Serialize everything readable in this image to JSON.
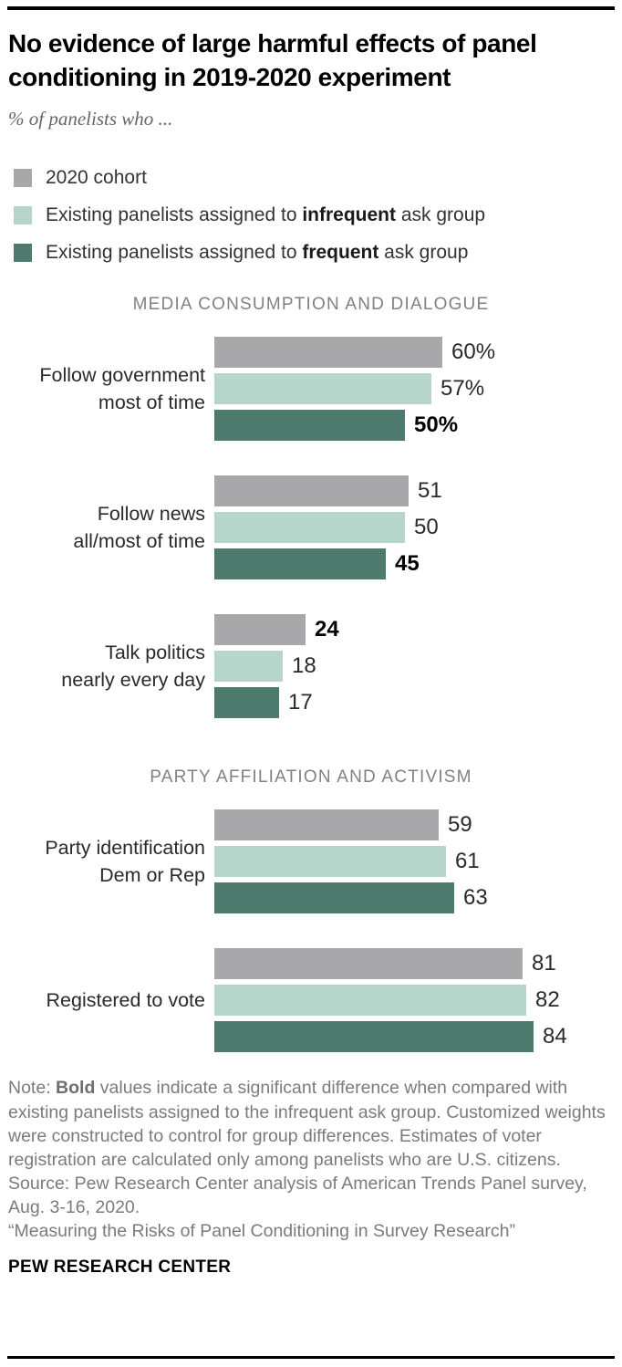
{
  "header": {
    "title": "No evidence of large harmful effects of panel conditioning in 2019-2020 experiment",
    "subtitle": "% of panelists who ..."
  },
  "legend": {
    "items": [
      {
        "pre": "2020 cohort",
        "bold": "",
        "post": ""
      },
      {
        "pre": "Existing panelists assigned to ",
        "bold": "infrequent",
        "post": " ask group"
      },
      {
        "pre": "Existing panelists assigned to ",
        "bold": "frequent",
        "post": " ask group"
      }
    ]
  },
  "chart_data": {
    "type": "bar",
    "orientation": "horizontal",
    "unit": "percent",
    "xlim": [
      0,
      100
    ],
    "grid": false,
    "legend_position": "top-left",
    "series_names": [
      "2020 cohort",
      "Existing panelists assigned to infrequent ask group",
      "Existing panelists assigned to frequent ask group"
    ],
    "series_colors": [
      "#a8a7aa",
      "#b6d6cc",
      "#4d7a6d"
    ],
    "bold_meaning": "significant difference vs. infrequent ask group",
    "sections": [
      {
        "header": "MEDIA CONSUMPTION AND DIALOGUE",
        "groups": [
          {
            "label": "Follow government\nmost of time",
            "bars": [
              {
                "value": 60,
                "display": "60%",
                "bold": false
              },
              {
                "value": 57,
                "display": "57%",
                "bold": false
              },
              {
                "value": 50,
                "display": "50%",
                "bold": true
              }
            ]
          },
          {
            "label": "Follow news\nall/most of time",
            "bars": [
              {
                "value": 51,
                "display": "51",
                "bold": false
              },
              {
                "value": 50,
                "display": "50",
                "bold": false
              },
              {
                "value": 45,
                "display": "45",
                "bold": true
              }
            ]
          },
          {
            "label": "Talk politics\nnearly every day",
            "bars": [
              {
                "value": 24,
                "display": "24",
                "bold": true
              },
              {
                "value": 18,
                "display": "18",
                "bold": false
              },
              {
                "value": 17,
                "display": "17",
                "bold": false
              }
            ]
          }
        ]
      },
      {
        "header": "PARTY AFFILIATION AND ACTIVISM",
        "groups": [
          {
            "label": "Party identification\nDem or Rep",
            "bars": [
              {
                "value": 59,
                "display": "59",
                "bold": false
              },
              {
                "value": 61,
                "display": "61",
                "bold": false
              },
              {
                "value": 63,
                "display": "63",
                "bold": false
              }
            ]
          },
          {
            "label": "Registered to vote",
            "bars": [
              {
                "value": 81,
                "display": "81",
                "bold": false
              },
              {
                "value": 82,
                "display": "82",
                "bold": false
              },
              {
                "value": 84,
                "display": "84",
                "bold": false
              }
            ]
          }
        ]
      }
    ]
  },
  "footer": {
    "note_prefix": "Note: ",
    "note_bold": "Bold",
    "note_body": " values indicate a significant difference when compared with existing panelists assigned to the infrequent ask group. Customized weights were constructed to control for group differences. Estimates of voter registration are calculated only among panelists who are U.S. citizens.",
    "source": "Source: Pew Research Center analysis of American Trends Panel survey, Aug. 3-16, 2020.",
    "quote": "“Measuring the Risks of Panel Conditioning in Survey Research”",
    "brand": "PEW RESEARCH CENTER"
  }
}
